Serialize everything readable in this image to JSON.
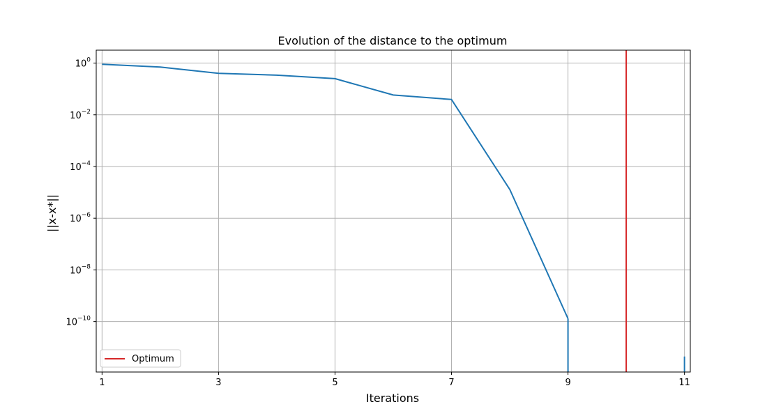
{
  "chart_data": {
    "type": "line",
    "title": "Evolution of the distance to the optimum",
    "xlabel": "Iterations",
    "ylabel": "||x-x*||",
    "yscale": "log",
    "xlim": [
      0.9,
      11.1
    ],
    "ylim_log10": [
      -11.95,
      0.5
    ],
    "xticks": [
      1,
      3,
      5,
      7,
      9,
      11
    ],
    "yticks_exponent": [
      0,
      -2,
      -4,
      -6,
      -8,
      -10
    ],
    "ytick_base": "10",
    "grid": true,
    "legend_position": "lower-left",
    "series": [
      {
        "color": "#1f77b4",
        "x": [
          1,
          2,
          3,
          4,
          5,
          6,
          7,
          8,
          9
        ],
        "y": [
          0.9,
          0.7,
          0.4,
          0.34,
          0.25,
          0.058,
          0.039,
          1.3e-05,
          1.3e-10
        ]
      },
      {
        "name": "Optimum",
        "type": "vline",
        "color": "#d62728",
        "x": 10
      }
    ],
    "drops_to_zero": [
      9,
      11
    ],
    "legend": [
      {
        "label": "Optimum",
        "color": "#d62728"
      }
    ]
  }
}
